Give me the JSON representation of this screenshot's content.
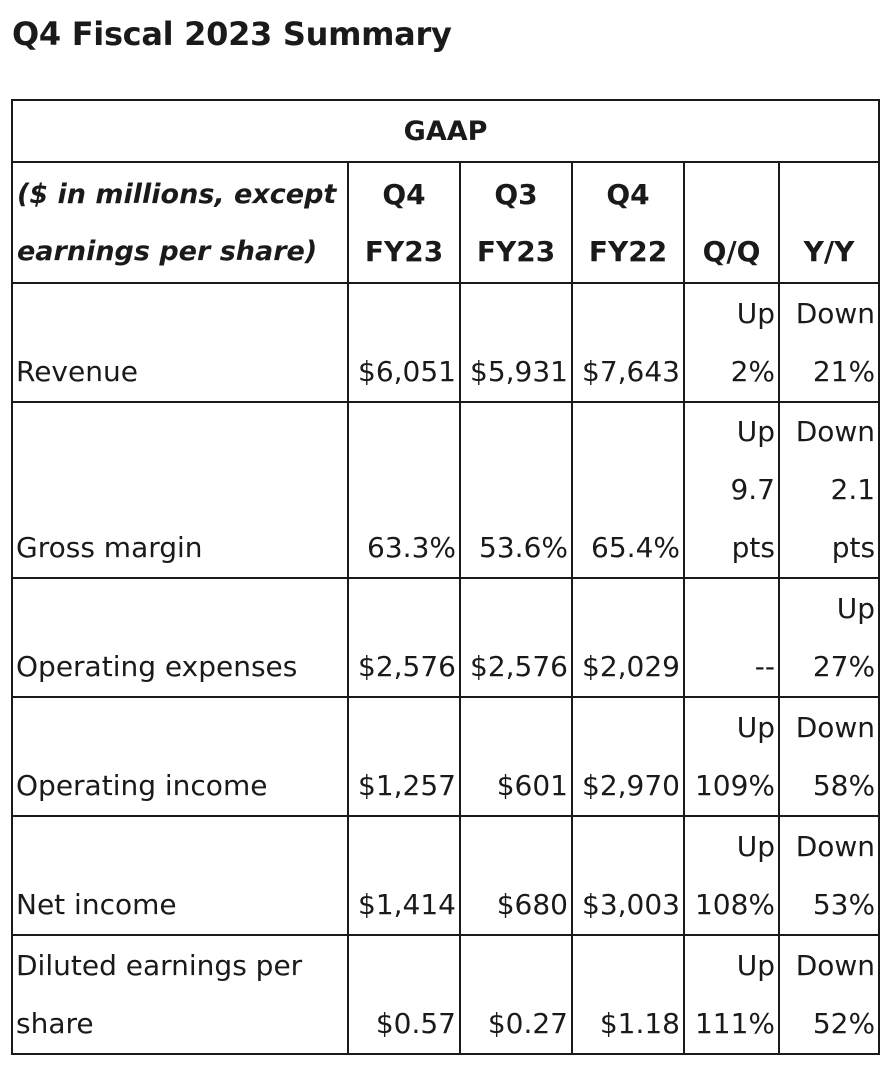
{
  "title": "Q4 Fiscal 2023 Summary",
  "table": {
    "section_header": "GAAP",
    "row_header_lines": [
      "($ in millions, except",
      "earnings per share)"
    ],
    "columns": [
      {
        "line1": "Q4",
        "line2": "FY23"
      },
      {
        "line1": "Q3",
        "line2": "FY23"
      },
      {
        "line1": "Q4",
        "line2": "FY22"
      },
      {
        "line1": "",
        "line2": "Q/Q"
      },
      {
        "line1": "",
        "line2": "Y/Y"
      }
    ],
    "rows": [
      {
        "label": "Revenue",
        "q4fy23": "$6,051",
        "q3fy23": "$5,931",
        "q4fy22": "$7,643",
        "qq": [
          "Up",
          "2%"
        ],
        "yy": [
          "Down",
          "21%"
        ]
      },
      {
        "label": "Gross margin",
        "q4fy23": "63.3%",
        "q3fy23": "53.6%",
        "q4fy22": "65.4%",
        "qq": [
          "Up",
          "9.7",
          "pts"
        ],
        "yy": [
          "Down",
          "2.1",
          "pts"
        ]
      },
      {
        "label": "Operating expenses",
        "q4fy23": "$2,576",
        "q3fy23": "$2,576",
        "q4fy22": "$2,029",
        "qq": [
          "--"
        ],
        "yy": [
          "Up",
          "27%"
        ]
      },
      {
        "label": "Operating income",
        "q4fy23": "$1,257",
        "q3fy23": "$601",
        "q4fy22": "$2,970",
        "qq": [
          "Up",
          "109%"
        ],
        "yy": [
          "Down",
          "58%"
        ]
      },
      {
        "label": "Net income",
        "q4fy23": "$1,414",
        "q3fy23": "$680",
        "q4fy22": "$3,003",
        "qq": [
          "Up",
          "108%"
        ],
        "yy": [
          "Down",
          "53%"
        ]
      },
      {
        "label_lines": [
          "Diluted earnings per",
          "share"
        ],
        "q4fy23": "$0.57",
        "q3fy23": "$0.27",
        "q4fy22": "$1.18",
        "qq": [
          "Up",
          "111%"
        ],
        "yy": [
          "Down",
          "52%"
        ]
      }
    ]
  }
}
